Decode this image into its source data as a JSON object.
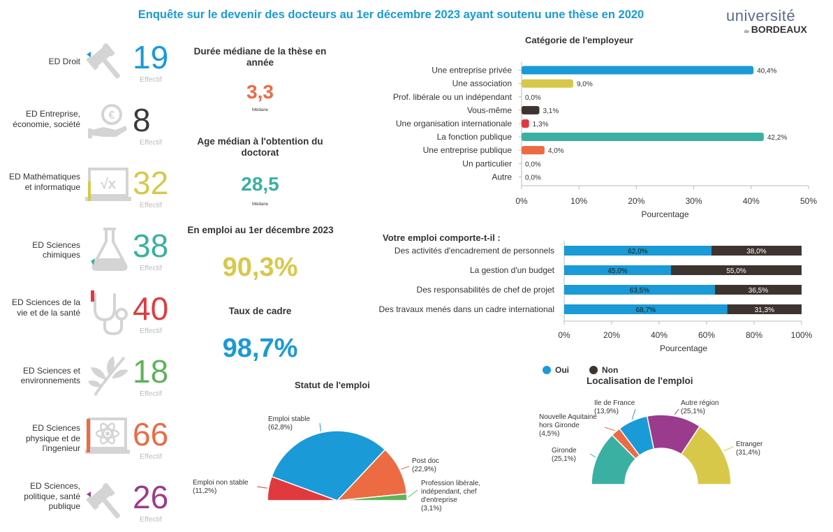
{
  "header": {
    "title": "Enquête sur le devenir des docteurs au 1er décembre 2023 ayant soutenu une thèse en 2020",
    "logo_top": "université",
    "logo_de": "de",
    "logo_bottom": "BORDEAUX"
  },
  "doctoral_schools": [
    {
      "label": "ED Droit",
      "count": "19",
      "color": "#1a9ad6",
      "icon": "gavel-icon",
      "effectif": "Effectif"
    },
    {
      "label": "ED Entreprise, économie, société",
      "count": "8",
      "color": "#3a3a3a",
      "icon": "euro-hand-icon",
      "effectif": "Effectif"
    },
    {
      "label": "ED Mathématiques et informatique",
      "count": "32",
      "color": "#d8c84a",
      "icon": "sqrt-board-icon",
      "effectif": "Effectif"
    },
    {
      "label": "ED Sciences chimiques",
      "count": "38",
      "color": "#3ab0a2",
      "icon": "flask-icon",
      "effectif": "Effectif"
    },
    {
      "label": "ED Sciences de la vie et de la santé",
      "count": "40",
      "color": "#e03a3e",
      "icon": "stethoscope-icon",
      "effectif": "Effectif"
    },
    {
      "label": "ED Sciences et environnements",
      "count": "18",
      "color": "#5fb35a",
      "icon": "leaf-icon",
      "effectif": "Effectif"
    },
    {
      "label": "ED Sciences physique et de l'ingenieur",
      "count": "66",
      "color": "#ec6b42",
      "icon": "atom-board-icon",
      "effectif": "Effectif"
    },
    {
      "label": "ED Sciences, politique, santé publique",
      "count": "26",
      "color": "#9b3b8e",
      "icon": "gavel-icon",
      "effectif": "Effectif"
    }
  ],
  "kpis": {
    "duree": {
      "title": "Durée médiane de la thèse en année",
      "value": "3,3",
      "sub": "Médiane",
      "color": "#ec6b42"
    },
    "age": {
      "title": "Age médian à l'obtention du doctorat",
      "value": "28,5",
      "sub": "Médiane",
      "color": "#3ab0a2"
    },
    "emploi": {
      "title": "En emploi au 1er décembre 2023",
      "value": "90,3%",
      "color": "#d8c84a"
    },
    "cadre": {
      "title": "Taux de cadre",
      "value": "98,7%",
      "color": "#1a9ad6"
    }
  },
  "chart_data": [
    {
      "type": "bar",
      "orientation": "horizontal",
      "title": "Catégorie de l'employeur",
      "xlabel": "Pourcentage",
      "xlim": [
        0,
        50
      ],
      "xticks": [
        "0%",
        "10%",
        "20%",
        "30%",
        "40%",
        "50%"
      ],
      "categories": [
        "Une entreprise privée",
        "Une association",
        "Prof. libérale ou un indépendant",
        "Vous-même",
        "Une organisation internationale",
        "La fonction publique",
        "Une entreprise publique",
        "Un particulier",
        "Autre"
      ],
      "values": [
        40.4,
        9.0,
        0.0,
        3.1,
        1.3,
        42.2,
        4.0,
        0.0,
        0.0
      ],
      "value_labels": [
        "40,4%",
        "9,0%",
        "0,0%",
        "3,1%",
        "1,3%",
        "42,2%",
        "4,0%",
        "0,0%",
        "0,0%"
      ],
      "colors": [
        "#1a9ad6",
        "#d8c84a",
        "#999999",
        "#3d3430",
        "#e03a3e",
        "#3ab0a2",
        "#ec6b42",
        "#999999",
        "#999999"
      ]
    },
    {
      "type": "bar",
      "orientation": "horizontal",
      "stacked": true,
      "title": "Votre emploi comporte-t-il :",
      "xlabel": "Pourcentage",
      "xlim": [
        0,
        100
      ],
      "xticks": [
        "0%",
        "20%",
        "40%",
        "60%",
        "80%",
        "100%"
      ],
      "categories": [
        "Des activités d'encadrement de personnels",
        "La gestion d'un budget",
        "Des responsabilités de chef de projet",
        "Des travaux menés dans un cadre international"
      ],
      "series": [
        {
          "name": "Oui",
          "color": "#1a9ad6",
          "values": [
            62.0,
            45.0,
            63.5,
            68.7
          ],
          "labels": [
            "62,0%",
            "45,0%",
            "63,5%",
            "68,7%"
          ]
        },
        {
          "name": "Non",
          "color": "#3d3430",
          "values": [
            38.0,
            55.0,
            36.5,
            31.3
          ],
          "labels": [
            "38,0%",
            "55,0%",
            "36,5%",
            "31,3%"
          ]
        }
      ],
      "legend": "bottom-left"
    },
    {
      "type": "pie",
      "variant": "semi-circle",
      "title": "Statut de l'emploi",
      "slices": [
        {
          "name": "Emploi non stable",
          "value": 11.2,
          "label": "(11,2%)",
          "color": "#e03a3e"
        },
        {
          "name": "Emploi stable",
          "value": 62.8,
          "label": "(62,8%)",
          "color": "#1a9ad6"
        },
        {
          "name": "Post doc",
          "value": 22.9,
          "label": "(22,9%)",
          "color": "#ec6b42"
        },
        {
          "name": "Profession libérale, indépendant, chef d'entreprise",
          "value": 3.1,
          "label": "(3,1%)",
          "color": "#5fb35a"
        }
      ]
    },
    {
      "type": "pie",
      "variant": "semi-donut",
      "title": "Localisation de l'emploi",
      "slices": [
        {
          "name": "Gironde",
          "value": 25.1,
          "label": "(25,1%)",
          "color": "#3ab0a2"
        },
        {
          "name": "Nouvelle Aquitaine hors Gironde",
          "value": 4.5,
          "label": "(4,5%)",
          "color": "#ec6b42"
        },
        {
          "name": "Ile de France",
          "value": 13.9,
          "label": "(13,9%)",
          "color": "#1a9ad6"
        },
        {
          "name": "Autre région",
          "value": 25.1,
          "label": "(25,1%)",
          "color": "#9b3b8e"
        },
        {
          "name": "Etranger",
          "value": 31.4,
          "label": "(31,4%)",
          "color": "#d8c84a"
        }
      ]
    }
  ]
}
